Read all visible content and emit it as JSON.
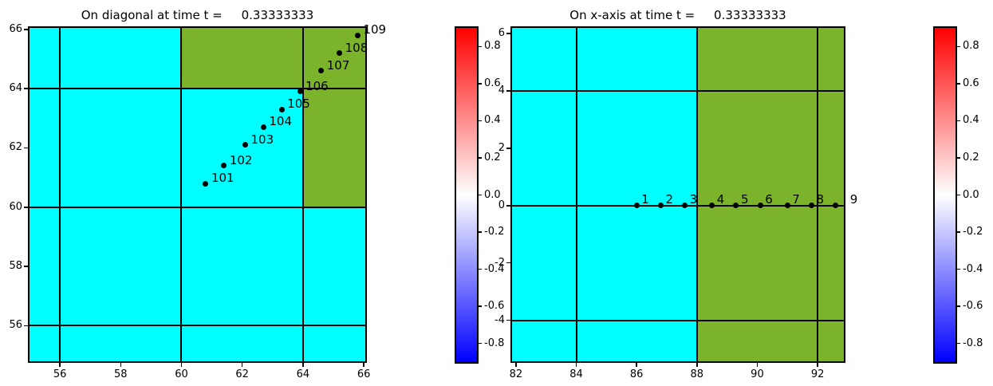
{
  "chart_data": [
    {
      "type": "scatter",
      "title": "On diagonal at time t =     0.33333333",
      "xlabel": "",
      "ylabel": "",
      "xlim": [
        55,
        66.05
      ],
      "ylim": [
        54.8,
        66.05
      ],
      "xticks": [
        56,
        58,
        60,
        62,
        64,
        66
      ],
      "yticks": [
        56,
        58,
        60,
        62,
        64,
        66
      ],
      "grid": {
        "x": [
          56,
          60,
          64
        ],
        "y": [
          56,
          60,
          64
        ]
      },
      "bg_color": "#00ffff",
      "region_color": "#7bb32a",
      "regions": [
        {
          "x": [
            60,
            66.05
          ],
          "y": [
            64,
            66.05
          ]
        },
        {
          "x": [
            64,
            66.05
          ],
          "y": [
            60,
            64
          ]
        }
      ],
      "points": [
        {
          "label": "101",
          "x": 60.8,
          "y": 60.8
        },
        {
          "label": "102",
          "x": 61.4,
          "y": 61.4
        },
        {
          "label": "103",
          "x": 62.1,
          "y": 62.1
        },
        {
          "label": "104",
          "x": 62.7,
          "y": 62.7
        },
        {
          "label": "105",
          "x": 63.3,
          "y": 63.3
        },
        {
          "label": "106",
          "x": 63.9,
          "y": 63.9
        },
        {
          "label": "107",
          "x": 64.6,
          "y": 64.6
        },
        {
          "label": "108",
          "x": 65.2,
          "y": 65.2
        },
        {
          "label": "109",
          "x": 65.8,
          "y": 65.8
        }
      ],
      "colorbar": {
        "vmin": -0.9,
        "vmax": 0.9,
        "colormap": "bwr",
        "colors": [
          "#ff0000",
          "#ffffff",
          "#0000ff"
        ],
        "tick_vals": [
          0.8,
          0.6,
          0.4,
          0.2,
          0.0,
          -0.2,
          -0.4,
          -0.6,
          -0.8
        ],
        "tick_labels": [
          "0.8",
          "0.6",
          "0.4",
          "0.2",
          "0.0",
          "-0.2",
          "-0.4",
          "-0.6",
          "-0.8"
        ]
      }
    },
    {
      "type": "scatter",
      "title": "On x-axis at time t =     0.33333333",
      "xlabel": "",
      "ylabel": "",
      "xlim": [
        81.87,
        92.87
      ],
      "ylim": [
        -5.43,
        6.2
      ],
      "xticks": [
        82,
        84,
        86,
        88,
        90,
        92
      ],
      "yticks": [
        6,
        4,
        2,
        0,
        -2,
        -4
      ],
      "grid": {
        "x": [
          84,
          88,
          92
        ],
        "y": [
          4,
          0,
          -4
        ]
      },
      "bg_color": "#00ffff",
      "region_color": "#7bb32a",
      "regions": [
        {
          "x": [
            88,
            92.87
          ],
          "y": [
            -5.43,
            6.2
          ]
        }
      ],
      "points": [
        {
          "label": "1",
          "x": 86.0,
          "y": 0
        },
        {
          "label": "2",
          "x": 86.8,
          "y": 0
        },
        {
          "label": "3",
          "x": 87.6,
          "y": 0
        },
        {
          "label": "4",
          "x": 88.5,
          "y": 0
        },
        {
          "label": "5",
          "x": 89.3,
          "y": 0
        },
        {
          "label": "6",
          "x": 90.1,
          "y": 0
        },
        {
          "label": "7",
          "x": 91.0,
          "y": 0
        },
        {
          "label": "8",
          "x": 91.8,
          "y": 0
        },
        {
          "label": "9",
          "x": 92.6,
          "y": 0,
          "label_dx": 18
        }
      ],
      "colorbar": {
        "vmin": -0.9,
        "vmax": 0.9,
        "colormap": "bwr",
        "colors": [
          "#ff0000",
          "#ffffff",
          "#0000ff"
        ],
        "tick_vals": [
          0.8,
          0.6,
          0.4,
          0.2,
          0.0,
          -0.2,
          -0.4,
          -0.6,
          -0.8
        ],
        "tick_labels": [
          "0.8",
          "0.6",
          "0.4",
          "0.2",
          "0.0",
          "-0.2",
          "-0.4",
          "-0.6",
          "-0.8"
        ]
      }
    }
  ]
}
